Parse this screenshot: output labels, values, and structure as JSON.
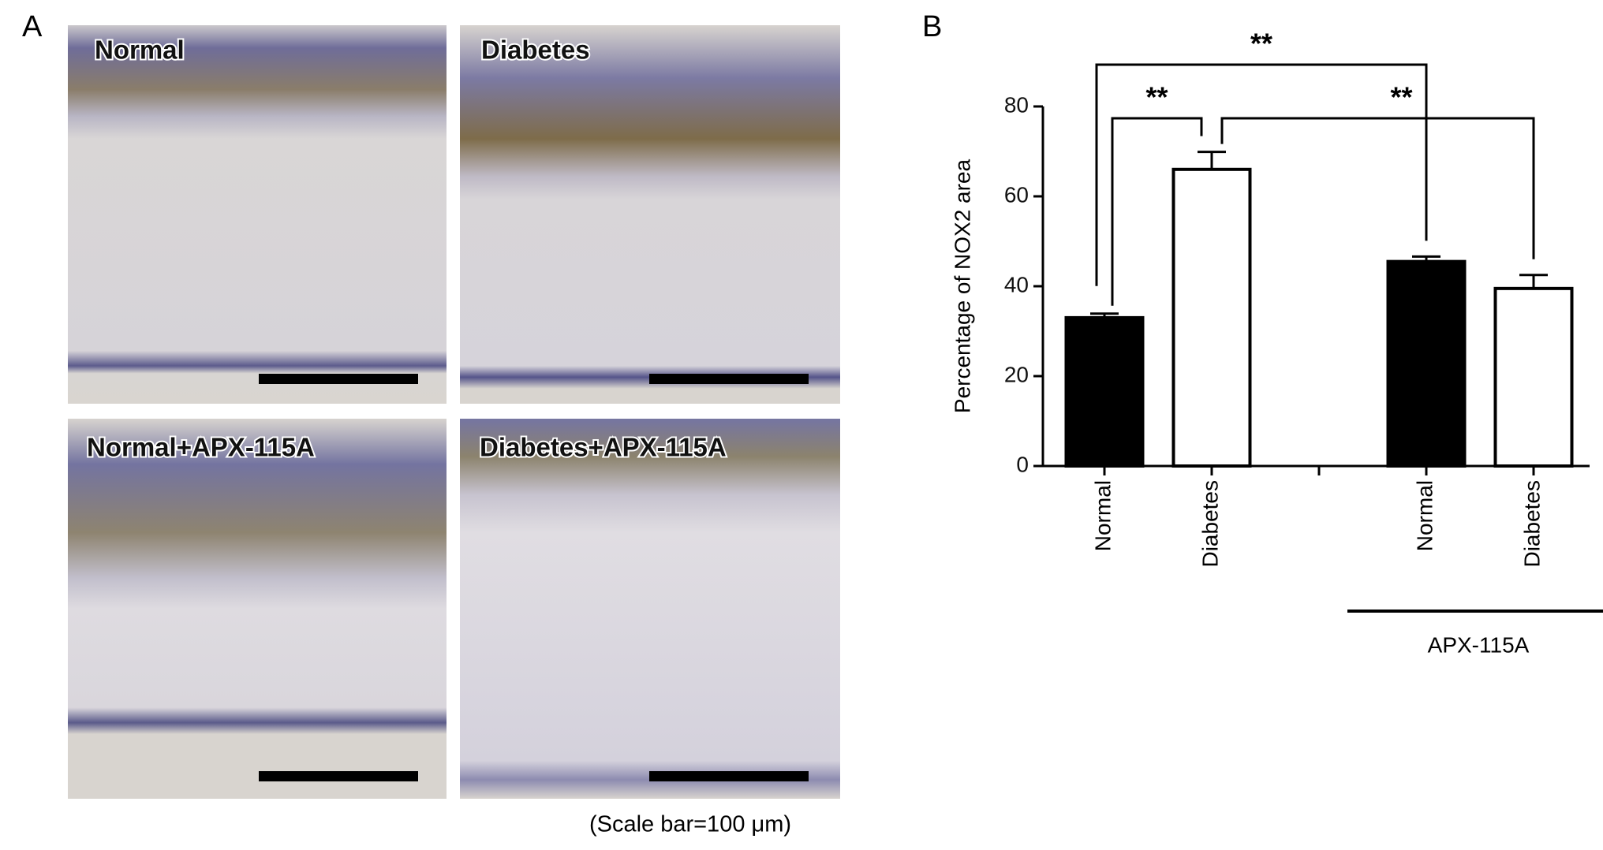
{
  "panel_a": {
    "letter": "A",
    "panels": [
      "Normal",
      "Diabetes",
      "Normal+APX-115A",
      "Diabetes+APX-115A"
    ],
    "scale_note": "(Scale bar=100 μm)"
  },
  "chart_data": {
    "type": "bar",
    "letter": "B",
    "ylabel": "Percentage of NOX2 area",
    "categories": [
      "Normal",
      "Diabetes",
      null,
      "Normal",
      "Diabetes"
    ],
    "values": [
      33,
      66,
      null,
      45.5,
      39.5
    ],
    "errors": [
      0.9,
      3.9,
      null,
      1.1,
      3
    ],
    "colors": [
      "#000000",
      "#ffffff",
      null,
      "#000000",
      "#ffffff"
    ],
    "ylim": [
      0,
      80
    ],
    "yticks": [
      0,
      20,
      40,
      60,
      80
    ],
    "group_label": {
      "label": "APX-115A",
      "from": 3,
      "to": 4
    },
    "significance": [
      {
        "from": 0,
        "to": 1,
        "label": "**"
      },
      {
        "from": 1,
        "to": 4,
        "label": "**"
      },
      {
        "from": 0,
        "to": 3,
        "label": "**"
      }
    ]
  }
}
